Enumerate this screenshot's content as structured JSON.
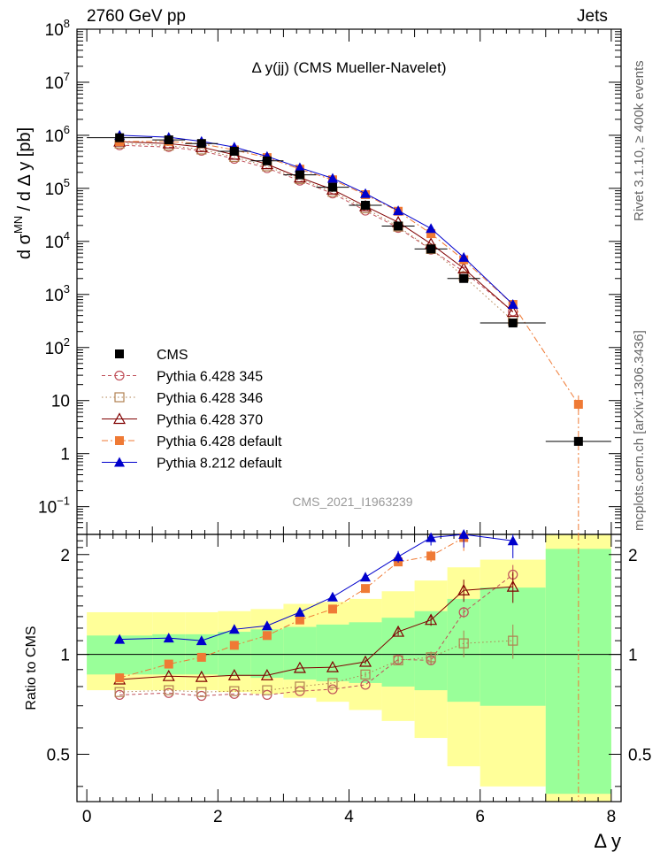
{
  "header": {
    "left": "2760 GeV pp",
    "right": "Jets"
  },
  "side": {
    "rivet": "Rivet 3.1.10, ≥ 400k events",
    "mcplots": "mcplots.cern.ch [arXiv:1306.3436]"
  },
  "chart_data": {
    "type": "scatter",
    "title": "Δ y(jj) (CMS Mueller-Navelet)",
    "analysis_id": "CMS_2021_I1963239",
    "xlabel": "Δ y",
    "ylabel": "d σMN / d Δ y [pb]",
    "ratio_ylabel": "Ratio to CMS",
    "xlim": [
      -0.15,
      8.15
    ],
    "ylim": [
      0.03,
      100000000
    ],
    "yscale": "log",
    "ratio_ylim": [
      0.36,
      2.3
    ],
    "ratio_yscale": "log",
    "x_ticks": [
      "0",
      "2",
      "4",
      "6",
      "8"
    ],
    "y_ticks": [
      "10⁻¹",
      "1",
      "10",
      "10²",
      "10³",
      "10⁴",
      "10⁵",
      "10⁶",
      "10⁷",
      "10⁸"
    ],
    "ratio_ticks": [
      "0.5",
      "1",
      "2"
    ],
    "legend_position": "center-left",
    "x": [
      0.5,
      1.25,
      1.75,
      2.25,
      2.75,
      3.25,
      3.75,
      4.25,
      4.75,
      5.25,
      5.75,
      6.5,
      7.5
    ],
    "x_err": [
      0.5,
      0.25,
      0.25,
      0.25,
      0.25,
      0.25,
      0.25,
      0.25,
      0.25,
      0.25,
      0.25,
      0.5,
      0.5
    ],
    "cms": [
      900000,
      820000,
      700000,
      500000,
      330000,
      180000,
      105000,
      48000,
      19500,
      7200,
      2000,
      290,
      1.7
    ],
    "uncertainty_bands": {
      "inner_lo": [
        0.87,
        0.87,
        0.87,
        0.86,
        0.85,
        0.84,
        0.83,
        0.82,
        0.8,
        0.78,
        0.72,
        0.7,
        0.38
      ],
      "inner_hi": [
        1.14,
        1.15,
        1.15,
        1.17,
        1.19,
        1.21,
        1.23,
        1.25,
        1.29,
        1.35,
        1.47,
        1.59,
        2.08
      ],
      "outer_lo": [
        0.78,
        0.78,
        0.78,
        0.77,
        0.76,
        0.74,
        0.72,
        0.68,
        0.63,
        0.56,
        0.46,
        0.4,
        0.36
      ],
      "outer_hi": [
        1.34,
        1.34,
        1.34,
        1.35,
        1.37,
        1.42,
        1.44,
        1.47,
        1.55,
        1.67,
        1.83,
        1.93,
        2.3
      ]
    },
    "series": [
      {
        "name": "CMS",
        "color": "#000000",
        "marker": "filled-square",
        "line": "none",
        "ratio": [
          1,
          1,
          1,
          1,
          1,
          1,
          1,
          1,
          1,
          1,
          1,
          1,
          1
        ]
      },
      {
        "name": "Pythia 6.428 345",
        "color": "#c0505a",
        "marker": "open-circle",
        "line": "dashed",
        "ratio": [
          0.755,
          0.765,
          0.75,
          0.76,
          0.755,
          0.775,
          0.785,
          0.81,
          0.965,
          0.96,
          1.34,
          1.74,
          null
        ],
        "ratio_err": [
          0.005,
          0.005,
          0.005,
          0.005,
          0.005,
          0.005,
          0.005,
          0.01,
          0.02,
          0.03,
          0.05,
          0.12,
          null
        ]
      },
      {
        "name": "Pythia 6.428 346",
        "color": "#b08050",
        "marker": "open-square",
        "line": "dotted",
        "ratio": [
          0.77,
          0.78,
          0.77,
          0.775,
          0.78,
          0.8,
          0.82,
          0.87,
          0.96,
          0.98,
          1.08,
          1.1,
          null
        ],
        "ratio_err": [
          0.005,
          0.005,
          0.005,
          0.005,
          0.005,
          0.005,
          0.01,
          0.015,
          0.02,
          0.04,
          0.1,
          0.13,
          null
        ]
      },
      {
        "name": "Pythia 6.428 370",
        "color": "#800000",
        "marker": "open-triangle",
        "line": "solid",
        "ratio": [
          0.84,
          0.86,
          0.855,
          0.865,
          0.865,
          0.91,
          0.915,
          0.95,
          1.17,
          1.27,
          1.56,
          1.6,
          null
        ],
        "ratio_err": [
          0.005,
          0.005,
          0.005,
          0.005,
          0.005,
          0.005,
          0.01,
          0.015,
          0.03,
          0.05,
          0.12,
          0.17,
          null
        ]
      },
      {
        "name": "Pythia 6.428 default",
        "color": "#ef7a35",
        "marker": "filled-square",
        "line": "dashdot",
        "ratio": [
          0.85,
          0.935,
          0.98,
          1.065,
          1.14,
          1.27,
          1.37,
          1.58,
          1.9,
          1.98,
          2.25,
          null,
          null
        ],
        "ratio_err": [
          0.005,
          0.005,
          0.005,
          0.01,
          0.01,
          0.01,
          0.02,
          0.03,
          0.05,
          0.08,
          0.2,
          null,
          null
        ]
      },
      {
        "name": "Pythia 8.212 default",
        "color": "#0000cc",
        "marker": "filled-triangle",
        "line": "solid",
        "ratio": [
          1.11,
          1.12,
          1.1,
          1.19,
          1.22,
          1.34,
          1.49,
          1.71,
          1.97,
          2.25,
          2.3,
          2.2,
          null
        ],
        "ratio_err": [
          0.005,
          0.005,
          0.005,
          0.01,
          0.01,
          0.02,
          0.03,
          0.05,
          0.08,
          0.12,
          0.2,
          0.25,
          null
        ]
      }
    ],
    "main_values": {
      "Pythia 6.428 345": [
        650000,
        600000,
        510000,
        360000,
        240000,
        140000,
        80000,
        38000,
        18000,
        7000,
        2700,
        480,
        null
      ],
      "Pythia 6.428 346": [
        700000,
        640000,
        540000,
        390000,
        260000,
        150000,
        86000,
        42000,
        19000,
        7200,
        2200,
        320,
        null
      ],
      "Pythia 6.428 370": [
        760000,
        700000,
        600000,
        430000,
        285000,
        160000,
        95000,
        46000,
        23000,
        9000,
        3100,
        470,
        null
      ],
      "Pythia 6.428 default": [
        760000,
        770000,
        690000,
        530000,
        380000,
        230000,
        145000,
        76000,
        37000,
        14000,
        4500,
        650,
        8.5
      ],
      "Pythia 8.212 default": [
        1000000,
        920000,
        770000,
        600000,
        400000,
        245000,
        155000,
        80000,
        38000,
        17500,
        5000,
        650,
        null
      ]
    }
  }
}
